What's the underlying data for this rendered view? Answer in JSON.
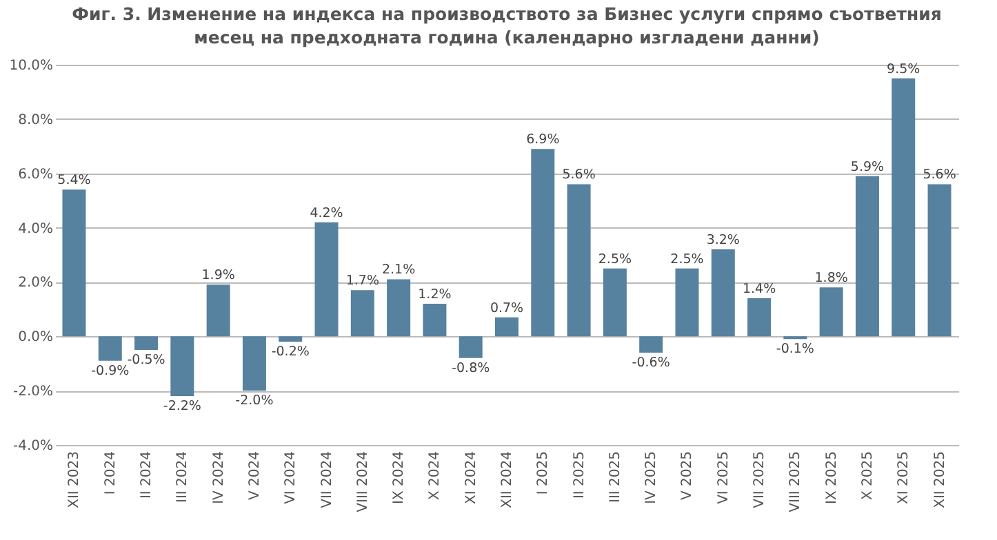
{
  "chart_data": {
    "type": "bar",
    "title": "Фиг. 3. Изменение на индекса на производството за Бизнес услуги спрямо съответния месец на предходната година (календарно изгладени данни)",
    "categories": [
      "XII 2023",
      "I 2024",
      "II 2024",
      "III 2024",
      "IV 2024",
      "V 2024",
      "VI 2024",
      "VII 2024",
      "VIII 2024",
      "IX 2024",
      "X 2024",
      "XI 2024",
      "XII 2024",
      "I 2025",
      "II 2025",
      "III 2025",
      "IV 2025",
      "V 2025",
      "VI 2025",
      "VII 2025",
      "VIII 2025",
      "IX 2025",
      "X 2025",
      "XI 2025",
      "XII 2025"
    ],
    "values": [
      5.4,
      -0.9,
      -0.5,
      -2.2,
      1.9,
      -2.0,
      -0.2,
      4.2,
      1.7,
      2.1,
      1.2,
      -0.8,
      0.7,
      6.9,
      5.6,
      2.5,
      -0.6,
      2.5,
      3.2,
      1.4,
      -0.1,
      1.8,
      5.9,
      9.5,
      5.6
    ],
    "value_labels": [
      "5.4%",
      "-0.9%",
      "-0.5%",
      "-2.2%",
      "1.9%",
      "-2.0%",
      "-0.2%",
      "4.2%",
      "1.7%",
      "2.1%",
      "1.2%",
      "-0.8%",
      "0.7%",
      "6.9%",
      "5.6%",
      "2.5%",
      "-0.6%",
      "2.5%",
      "3.2%",
      "1.4%",
      "-0.1%",
      "1.8%",
      "5.9%",
      "9.5%",
      "5.6%"
    ],
    "color": "#56819f",
    "ylim": [
      -4,
      10
    ],
    "yticks": [
      {
        "value": -4,
        "label": "-4.0%"
      },
      {
        "value": -2,
        "label": "-2.0%"
      },
      {
        "value": 0,
        "label": "0.0%"
      },
      {
        "value": 2,
        "label": "2.0%"
      },
      {
        "value": 4,
        "label": "4.0%"
      },
      {
        "value": 6,
        "label": "6.0%"
      },
      {
        "value": 8,
        "label": "8.0%"
      },
      {
        "value": 10,
        "label": "10.0%"
      }
    ],
    "grid": "y"
  }
}
